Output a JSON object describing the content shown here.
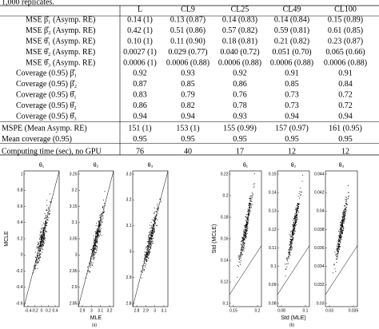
{
  "caption": "1,000 replicates.",
  "table": {
    "header": [
      "L",
      "CL9",
      "CL25",
      "CL49",
      "CL100"
    ],
    "rows": [
      {
        "label": "MSE β̂₁ (Asymp. RE)",
        "cells": [
          "0.14 (1)",
          "0.13 (0.87)",
          "0.14 (0.83)",
          "0.14 (0.84)",
          "0.15 (0.89)"
        ]
      },
      {
        "label": "MSE β̂₂ (Asymp. RE)",
        "cells": [
          "0.42 (1)",
          "0.51 (0.86)",
          "0.57 (0.82)",
          "0.59 (0.81)",
          "0.61 (0.85)"
        ]
      },
      {
        "label": "MSE θ̂₁ (Asymp. RE)",
        "cells": [
          "0.10 (1)",
          "0.11 (0.90)",
          "0.18 (0.81)",
          "0.21 (0.82)",
          "0.23 (0.87)"
        ]
      },
      {
        "label": "MSE θ̂₂ (Asymp. RE)",
        "cells": [
          "0.0027 (1)",
          "0.029 (0.77)",
          "0.040 (0.72)",
          "0.051 (0.70)",
          "0.065 (0.66)"
        ]
      },
      {
        "label": "MSE θ̂₃ (Asymp. RE)",
        "cells": [
          "0.0006 (1)",
          "0.0006 (0.88)",
          "0.0006 (0.88)",
          "0.0006 (0.88)",
          "0.0006 (0.88)"
        ]
      },
      {
        "label": "Coverage (0.95) β̂₁",
        "cells": [
          "0.92",
          "0.93",
          "0.92",
          "0.91",
          "0.91"
        ]
      },
      {
        "label": "Coverage (0.95) β̂₂",
        "cells": [
          "0.87",
          "0.85",
          "0.86",
          "0.85",
          "0.84"
        ]
      },
      {
        "label": "Coverage (0.95) θ̂₁",
        "cells": [
          "0.83",
          "0.79",
          "0.76",
          "0.73",
          "0.72"
        ]
      },
      {
        "label": "Coverage (0.95) θ̂₂",
        "cells": [
          "0.86",
          "0.82",
          "0.78",
          "0.73",
          "0.72"
        ]
      },
      {
        "label": "Coverage (0.95) θ̂₃",
        "cells": [
          "0.94",
          "0.94",
          "0.93",
          "0.94",
          "0.94"
        ]
      },
      {
        "label": "MSPE (Mean Asymp. RE)",
        "cells": [
          "151 (1)",
          "153 (1)",
          "155 (0.99)",
          "157 (0.97)",
          "161 (0.95)"
        ]
      },
      {
        "label": "Mean coverage (0.95)",
        "cells": [
          "0.95",
          "0.95",
          "0.95",
          "0.95",
          "0.95"
        ]
      },
      {
        "label": "Computing time (sec), no GPU",
        "cells": [
          "76",
          "40",
          "17",
          "12",
          "12"
        ]
      }
    ]
  },
  "figure": {
    "panels": [
      {
        "label": "(a)",
        "x_label": "MLE",
        "y_label": "MCLE",
        "plots": [
          {
            "title": "θ₁",
            "yticks": [
              "1",
              "0.8",
              "0.6",
              "0.4",
              "0.2",
              "0",
              "-0.2",
              "-0.4",
              "-0.6"
            ],
            "xticks": [
              "-0.4",
              "-0.2",
              "0",
              "0.2",
              "0.4"
            ]
          },
          {
            "title": "θ₂",
            "yticks": [
              "3.25",
              "3.2",
              "3.15",
              "3.1",
              "3.05",
              "3",
              "2.95",
              "2.9",
              "2.85"
            ],
            "xticks": [
              "2.9",
              "3",
              "3.1",
              "3.2"
            ]
          },
          {
            "title": "θ₃",
            "yticks": [
              "3.3",
              "3.2",
              "3.1",
              "3",
              "2.9",
              "2.8"
            ],
            "xticks": [
              "2.8",
              "2.9",
              "3",
              "3.1"
            ]
          }
        ]
      },
      {
        "label": "(b)",
        "x_label": "Std (MLE)",
        "y_label": "Std (MCLE)",
        "plots": [
          {
            "title": "θ₁",
            "yticks": [
              "0.22",
              "0.2",
              "0.18",
              "0.16",
              "0.14",
              "0.12",
              "0.1"
            ],
            "xticks": [
              "0.15",
              "0.2"
            ]
          },
          {
            "title": "θ₂",
            "yticks": [
              "0.15",
              "0.14",
              "0.13",
              "0.12",
              "0.11",
              "0.1",
              "0.09",
              "0.08"
            ],
            "xticks": [
              "0.08",
              "0.1"
            ]
          },
          {
            "title": "θ₃",
            "yticks": [
              "0.044",
              "0.042",
              "0.04",
              "0.038",
              "0.036",
              "0.034",
              "0.032",
              "0.03"
            ],
            "xticks": [
              "0.03",
              "0.035"
            ]
          }
        ]
      }
    ]
  }
}
